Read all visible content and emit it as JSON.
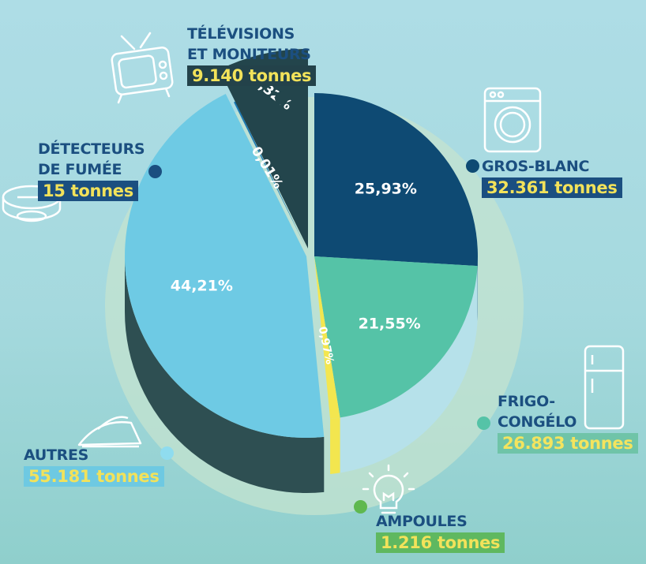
{
  "chart_data": {
    "type": "pie",
    "title": "",
    "slices": [
      {
        "key": "gros_blanc",
        "label_line1": "GROS-BLANC",
        "label_line2": "",
        "amount": "32.361 tonnes",
        "percent_label": "25,93%",
        "value": 25.93,
        "color": "#0e4a73"
      },
      {
        "key": "frigo",
        "label_line1": "FRIGO-",
        "label_line2": "CONGÉLO",
        "amount": "26.893 tonnes",
        "percent_label": "21,55%",
        "value": 21.55,
        "color": "#55c3a7"
      },
      {
        "key": "ampoules",
        "label_line1": "AMPOULES",
        "label_line2": "",
        "amount": "1.216 tonnes",
        "percent_label": "0,97%",
        "value": 0.97,
        "color": "#f3e64f"
      },
      {
        "key": "autres",
        "label_line1": "AUTRES",
        "label_line2": "",
        "amount": "55.181 tonnes",
        "percent_label": "44,21%",
        "value": 44.21,
        "color": "#6ecae4"
      },
      {
        "key": "detecteurs",
        "label_line1": "DÉTECTEURS",
        "label_line2": "DE FUMÉE",
        "amount": "15 tonnes",
        "percent_label": "0,01%",
        "value": 0.01,
        "color": "#1b78b3"
      },
      {
        "key": "televisions",
        "label_line1": "TÉLÉVISIONS",
        "label_line2": "ET MONITEURS",
        "amount": "9.140 tonnes",
        "percent_label": "7,32%",
        "value": 7.32,
        "color": "#23454c"
      }
    ]
  },
  "icons": {
    "tv": "tv-icon",
    "washer": "washing-machine-icon",
    "smoke": "smoke-detector-icon",
    "fridge": "fridge-icon",
    "iron": "iron-icon",
    "bulb": "light-bulb-icon"
  }
}
